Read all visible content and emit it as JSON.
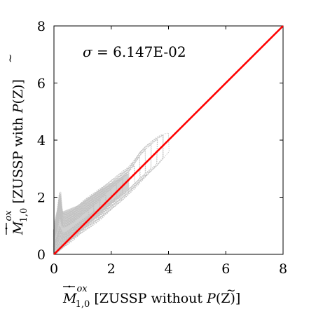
{
  "chart_data": {
    "type": "scatter",
    "xlabel": "M̄̇ᵒˣ₁,₀ [ZUSSP without P̃(Z)]",
    "ylabel": "M̄̇ᵒˣ₁,₀ [ZUSSP with P̃(Z)]",
    "xlabel_parts": {
      "symbol": "M",
      "sup": "ox",
      "sub": "1,0",
      "text_before": "[ZUSSP without ",
      "tilde_p": "P",
      "text_after": "(Z)]"
    },
    "ylabel_parts": {
      "symbol": "M",
      "sup": "ox",
      "sub": "1,0",
      "text_before": "[ZUSSP with ",
      "tilde_p": "P",
      "text_after": "(Z)]"
    },
    "xlim": [
      0,
      8
    ],
    "ylim": [
      0,
      8
    ],
    "xticks": [
      "0",
      "2",
      "4",
      "6",
      "8"
    ],
    "yticks": [
      "0",
      "2",
      "4",
      "6",
      "8"
    ],
    "x_tick_values": [
      0,
      2,
      4,
      6,
      8
    ],
    "y_tick_values": [
      0,
      2,
      4,
      6,
      8
    ],
    "annotation": {
      "sigma_symbol": "σ",
      "equals": " = ",
      "value": "6.147E-02"
    },
    "reference_line": {
      "name": "1:1",
      "x": [
        0,
        8
      ],
      "y": [
        0,
        8
      ],
      "color": "#ff0000"
    },
    "scatter_color": "#c0c0c0",
    "series": [
      {
        "kind": "contour-cloud",
        "x": [
          0.0,
          0.1,
          0.2,
          0.3,
          0.4,
          0.5,
          0.6,
          0.7,
          0.8,
          0.9,
          1.0,
          1.2,
          1.4,
          1.6,
          1.8,
          2.0,
          2.2,
          2.4,
          2.6,
          2.8,
          3.0,
          3.2,
          3.4,
          3.6,
          3.8,
          4.0
        ],
        "y_low": [
          0.0,
          0.05,
          0.12,
          0.2,
          0.28,
          0.36,
          0.45,
          0.52,
          0.6,
          0.68,
          0.76,
          0.9,
          1.05,
          1.2,
          1.38,
          1.55,
          1.72,
          1.9,
          2.1,
          2.3,
          2.5,
          2.7,
          2.9,
          3.1,
          3.35,
          3.6
        ],
        "y_high": [
          0.9,
          1.4,
          2.2,
          1.5,
          1.45,
          1.5,
          1.55,
          1.6,
          1.7,
          1.75,
          1.85,
          2.0,
          2.15,
          2.3,
          2.45,
          2.6,
          2.75,
          2.9,
          3.05,
          3.3,
          3.6,
          3.8,
          3.95,
          4.1,
          4.2,
          4.25
        ]
      }
    ]
  }
}
